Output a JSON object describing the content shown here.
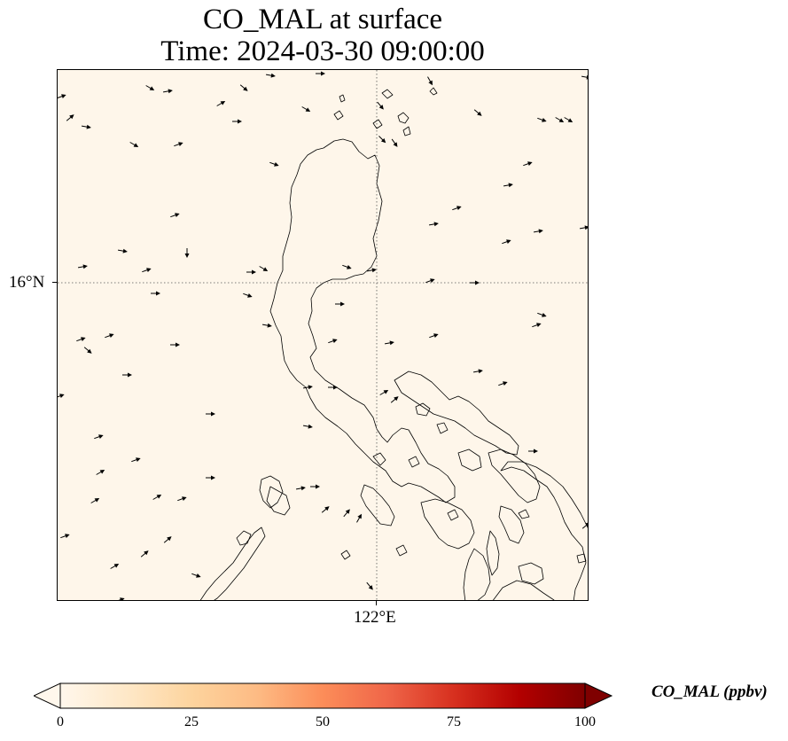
{
  "title": {
    "line1": "CO_MAL at surface",
    "line2": "Time: 2024-03-30 09:00:00"
  },
  "map": {
    "background_color": "#fef6ea",
    "coastline_color": "#000000",
    "gridline_style": "dotted",
    "lat_label": "16°N",
    "lon_label": "122°E",
    "wind_vectors": "black arrows"
  },
  "colorbar": {
    "label": "CO_MAL (ppbv)",
    "colormap": [
      "#fff7ec",
      "#fee8c8",
      "#fdd49e",
      "#fdbb84",
      "#fc8d59",
      "#ef6548",
      "#d7301f",
      "#b30000",
      "#7f0000"
    ],
    "ticks": [
      "0",
      "25",
      "50",
      "75",
      "100"
    ],
    "extend": "both"
  }
}
